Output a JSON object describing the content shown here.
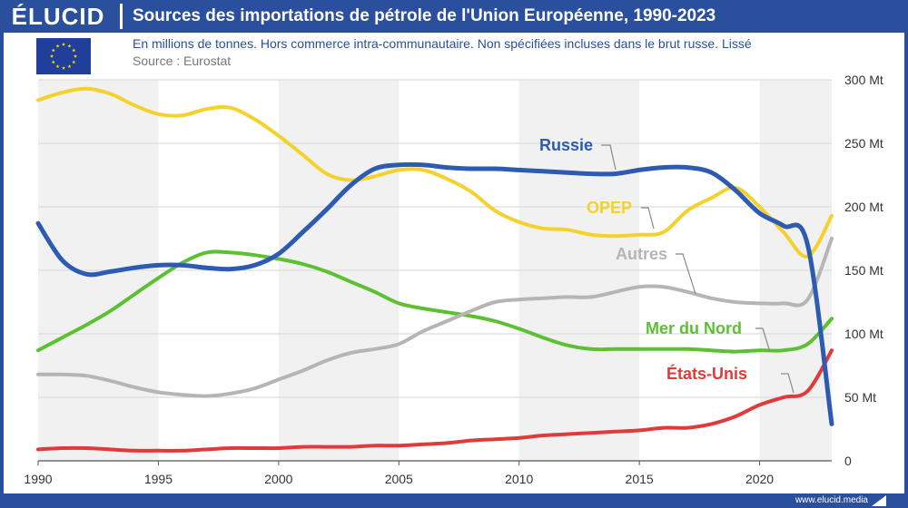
{
  "header": {
    "logo": "ÉLUCID",
    "title": "Sources des importations de pétrole de l'Union Européenne, 1990-2023"
  },
  "subtitle": "En millions de tonnes. Hors commerce intra-communautaire. Non spécifiées incluses dans le brut russe. Lissé",
  "source": "Source : Eurostat",
  "footer": {
    "url": "www.elucid.media"
  },
  "flag_icon": "eu-flag-icon",
  "colors": {
    "russie": "#2d5bb1",
    "opep": "#f4d22b",
    "autres": "#b5b5b5",
    "mer_du_nord": "#5cc132",
    "etats_unis": "#e03a3a",
    "brand": "#2a4f9c"
  },
  "chart_data": {
    "type": "line",
    "x_ticks": [
      "1990",
      "1995",
      "2000",
      "2005",
      "2010",
      "2015",
      "2020"
    ],
    "y_ticks": [
      "0",
      "50 Mt",
      "100 Mt",
      "150 Mt",
      "200 Mt",
      "250 Mt",
      "300 Mt"
    ],
    "xlim": [
      1990,
      2023
    ],
    "ylim": [
      0,
      300
    ],
    "grid": true,
    "x": [
      1990,
      1991,
      1992,
      1993,
      1994,
      1995,
      1996,
      1997,
      1998,
      1999,
      2000,
      2001,
      2002,
      2003,
      2004,
      2005,
      2006,
      2007,
      2008,
      2009,
      2010,
      2011,
      2012,
      2013,
      2014,
      2015,
      2016,
      2017,
      2018,
      2019,
      2020,
      2021,
      2022,
      2023
    ],
    "series": [
      {
        "name": "Russie",
        "key": "russie",
        "values": [
          187,
          158,
          147,
          149,
          152,
          154,
          154,
          152,
          151,
          154,
          163,
          180,
          198,
          217,
          230,
          233,
          233,
          231,
          230,
          230,
          229,
          228,
          227,
          226,
          226,
          229,
          231,
          231,
          227,
          213,
          195,
          185,
          170,
          29
        ]
      },
      {
        "name": "OPEP",
        "key": "opep",
        "values": [
          284,
          290,
          293,
          289,
          280,
          273,
          272,
          277,
          278,
          269,
          256,
          241,
          226,
          221,
          224,
          229,
          229,
          222,
          212,
          197,
          188,
          183,
          182,
          178,
          177,
          178,
          180,
          197,
          207,
          215,
          200,
          180,
          161,
          193
        ]
      },
      {
        "name": "Autres",
        "key": "autres",
        "values": [
          68,
          68,
          67,
          63,
          58,
          54,
          52,
          51,
          53,
          57,
          64,
          71,
          79,
          85,
          88,
          92,
          102,
          110,
          118,
          125,
          127,
          128,
          129,
          129,
          133,
          137,
          137,
          133,
          128,
          125,
          124,
          124,
          127,
          175
        ]
      },
      {
        "name": "Mer du Nord",
        "key": "mer_du_nord",
        "values": [
          87,
          97,
          107,
          118,
          131,
          144,
          156,
          164,
          164,
          162,
          159,
          155,
          149,
          141,
          133,
          124,
          120,
          117,
          114,
          110,
          104,
          97,
          91,
          88,
          88,
          88,
          88,
          88,
          87,
          86,
          87,
          87,
          92,
          112
        ]
      },
      {
        "name": "États-Unis",
        "key": "etats_unis",
        "values": [
          9,
          10,
          10,
          9,
          8,
          8,
          8,
          9,
          10,
          10,
          10,
          11,
          11,
          11,
          12,
          12,
          13,
          14,
          16,
          17,
          18,
          20,
          21,
          22,
          23,
          24,
          26,
          26,
          29,
          35,
          44,
          50,
          55,
          87
        ]
      }
    ],
    "labels": [
      {
        "text": "Russie",
        "key": "russie"
      },
      {
        "text": "OPEP",
        "key": "opep"
      },
      {
        "text": "Autres",
        "key": "autres"
      },
      {
        "text": "Mer du Nord",
        "key": "mer_du_nord"
      },
      {
        "text": "États-Unis",
        "key": "etats_unis"
      }
    ]
  }
}
